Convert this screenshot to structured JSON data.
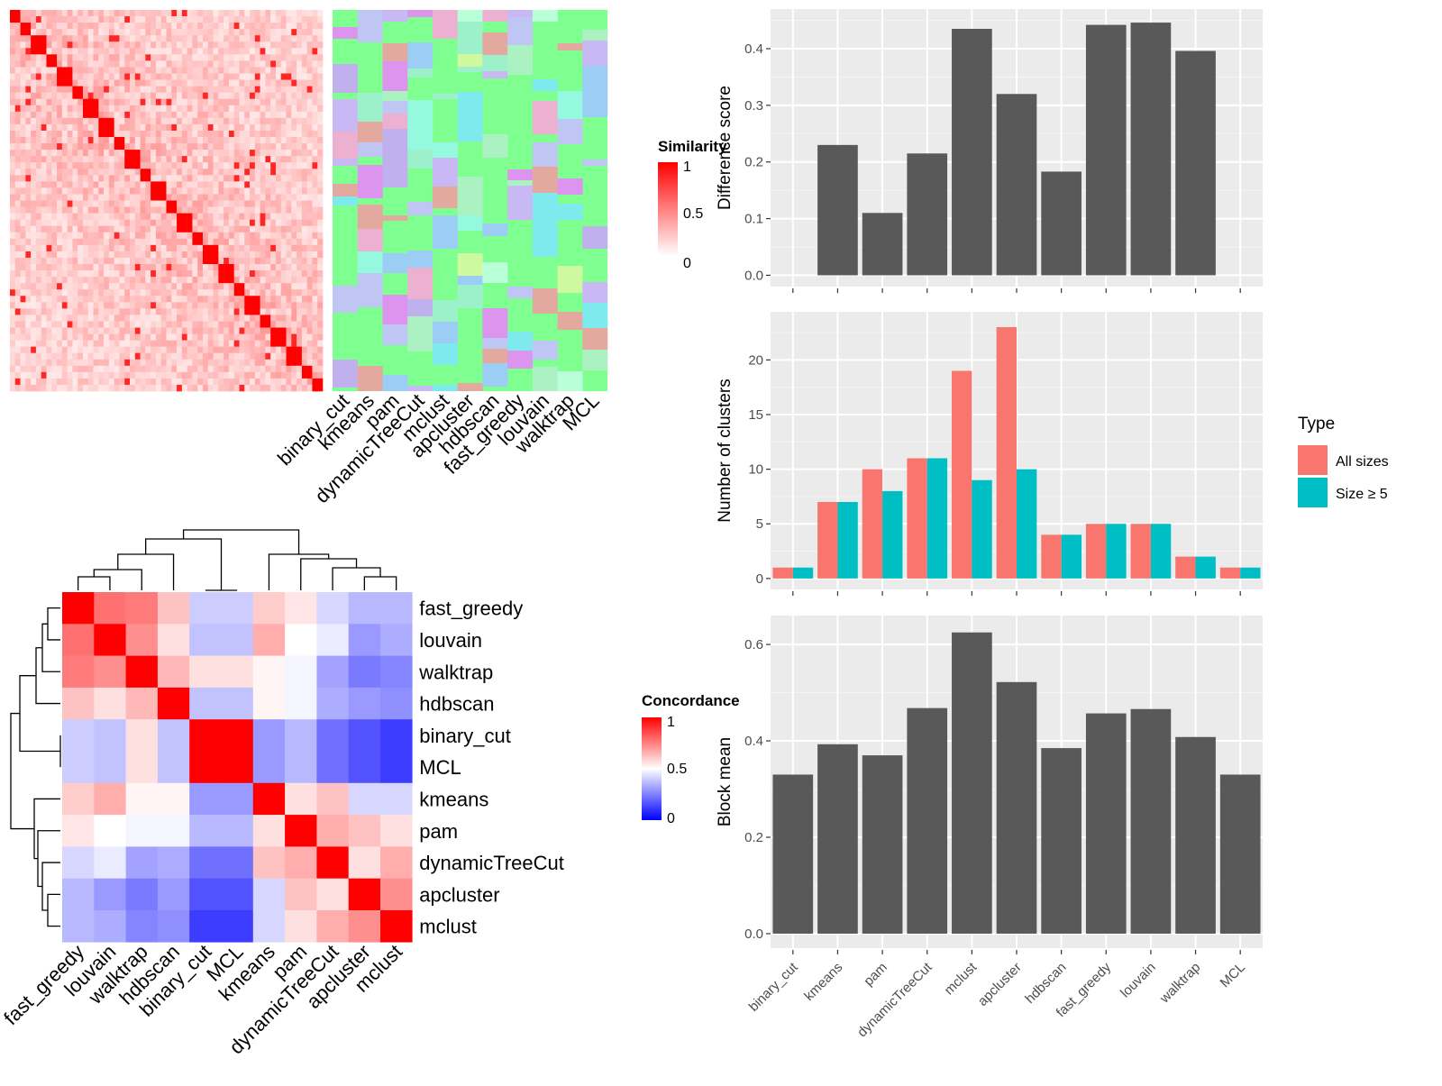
{
  "colors": {
    "similarity_high": "#FF0000",
    "similarity_low": "#FFFFFF",
    "concordance_high": "#FF0000",
    "concordance_mid": "#FFFFFF",
    "concordance_low": "#0000FF",
    "panel_bg": "#EBEBEB",
    "bar_dark": "#595959",
    "type_all": "#F8766D",
    "type_size5": "#00BFC4",
    "membership_bg": "#7FFF8F"
  },
  "similarity_legend": {
    "title": "Similarity",
    "ticks": [
      "1",
      "0.5",
      "0"
    ]
  },
  "concordance_legend": {
    "title": "Concordance",
    "ticks": [
      "1",
      "0.5",
      "0"
    ]
  },
  "membership_columns": [
    "binary_cut",
    "kmeans",
    "pam",
    "dynamicTreeCut",
    "mclust",
    "apcluster",
    "hdbscan",
    "fast_greedy",
    "louvain",
    "walktrap",
    "MCL"
  ],
  "chart_data": [
    {
      "type": "heatmap",
      "name": "concordance",
      "rows": [
        "fast_greedy",
        "louvain",
        "walktrap",
        "hdbscan",
        "binary_cut",
        "MCL",
        "kmeans",
        "pam",
        "dynamicTreeCut",
        "apcluster",
        "mclust"
      ],
      "columns": [
        "fast_greedy",
        "louvain",
        "walktrap",
        "hdbscan",
        "binary_cut",
        "MCL",
        "kmeans",
        "pam",
        "dynamicTreeCut",
        "apcluster",
        "mclust"
      ],
      "values": [
        [
          1.0,
          0.78,
          0.76,
          0.62,
          0.4,
          0.4,
          0.6,
          0.55,
          0.42,
          0.36,
          0.36
        ],
        [
          0.78,
          1.0,
          0.72,
          0.56,
          0.38,
          0.38,
          0.66,
          0.5,
          0.46,
          0.3,
          0.34
        ],
        [
          0.76,
          0.72,
          1.0,
          0.64,
          0.56,
          0.56,
          0.52,
          0.48,
          0.32,
          0.24,
          0.26
        ],
        [
          0.62,
          0.56,
          0.64,
          1.0,
          0.38,
          0.38,
          0.52,
          0.48,
          0.34,
          0.3,
          0.28
        ],
        [
          0.4,
          0.38,
          0.56,
          0.38,
          1.0,
          1.0,
          0.3,
          0.36,
          0.22,
          0.16,
          0.12
        ],
        [
          0.4,
          0.38,
          0.56,
          0.38,
          1.0,
          1.0,
          0.3,
          0.36,
          0.22,
          0.16,
          0.12
        ],
        [
          0.6,
          0.66,
          0.52,
          0.52,
          0.3,
          0.3,
          1.0,
          0.56,
          0.62,
          0.42,
          0.42
        ],
        [
          0.55,
          0.5,
          0.48,
          0.48,
          0.36,
          0.36,
          0.56,
          1.0,
          0.66,
          0.62,
          0.56
        ],
        [
          0.42,
          0.46,
          0.32,
          0.34,
          0.22,
          0.22,
          0.62,
          0.66,
          1.0,
          0.56,
          0.66
        ],
        [
          0.36,
          0.3,
          0.24,
          0.3,
          0.16,
          0.16,
          0.42,
          0.62,
          0.56,
          1.0,
          0.72
        ],
        [
          0.36,
          0.34,
          0.26,
          0.28,
          0.12,
          0.12,
          0.42,
          0.56,
          0.66,
          0.72,
          1.0
        ]
      ],
      "range": [
        0,
        1
      ]
    },
    {
      "type": "bar",
      "name": "difference-score",
      "categories": [
        "binary_cut",
        "kmeans",
        "pam",
        "dynamicTreeCut",
        "mclust",
        "apcluster",
        "hdbscan",
        "fast_greedy",
        "louvain",
        "walktrap",
        "MCL"
      ],
      "values": [
        0,
        0.23,
        0.11,
        0.215,
        0.435,
        0.32,
        0.183,
        0.442,
        0.446,
        0.396,
        0
      ],
      "xlabel": "",
      "ylabel": "Difference score",
      "ylim": [
        -0.02,
        0.47
      ],
      "yticks": [
        0.0,
        0.1,
        0.2,
        0.3,
        0.4
      ],
      "ytick_labels": [
        "0.0",
        "0.1",
        "0.2",
        "0.3",
        "0.4"
      ],
      "grid": true
    },
    {
      "type": "bar",
      "name": "number-of-clusters",
      "categories": [
        "binary_cut",
        "kmeans",
        "pam",
        "dynamicTreeCut",
        "mclust",
        "apcluster",
        "hdbscan",
        "fast_greedy",
        "louvain",
        "walktrap",
        "MCL"
      ],
      "series": [
        {
          "name": "All sizes",
          "values": [
            1,
            7,
            10,
            11,
            19,
            23,
            4,
            5,
            5,
            2,
            1
          ]
        },
        {
          "name": "Size ≥ 5",
          "values": [
            1,
            7,
            8,
            11,
            9,
            10,
            4,
            5,
            5,
            2,
            1
          ]
        }
      ],
      "xlabel": "",
      "ylabel": "Number of clusters",
      "ylim": [
        -1,
        24.4
      ],
      "yticks": [
        0,
        5,
        10,
        15,
        20
      ],
      "ytick_labels": [
        "0",
        "5",
        "10",
        "15",
        "20"
      ],
      "legend_title": "Type",
      "legend_position": "right",
      "grid": true
    },
    {
      "type": "bar",
      "name": "block-mean",
      "categories": [
        "binary_cut",
        "kmeans",
        "pam",
        "dynamicTreeCut",
        "mclust",
        "apcluster",
        "hdbscan",
        "fast_greedy",
        "louvain",
        "walktrap",
        "MCL"
      ],
      "values": [
        0.33,
        0.393,
        0.37,
        0.468,
        0.625,
        0.522,
        0.385,
        0.457,
        0.466,
        0.408,
        0.33
      ],
      "xlabel": "",
      "ylabel": "Block mean",
      "ylim": [
        -0.03,
        0.66
      ],
      "yticks": [
        0.0,
        0.2,
        0.4,
        0.6
      ],
      "ytick_labels": [
        "0.0",
        "0.2",
        "0.4",
        "0.6"
      ],
      "grid": true
    }
  ]
}
